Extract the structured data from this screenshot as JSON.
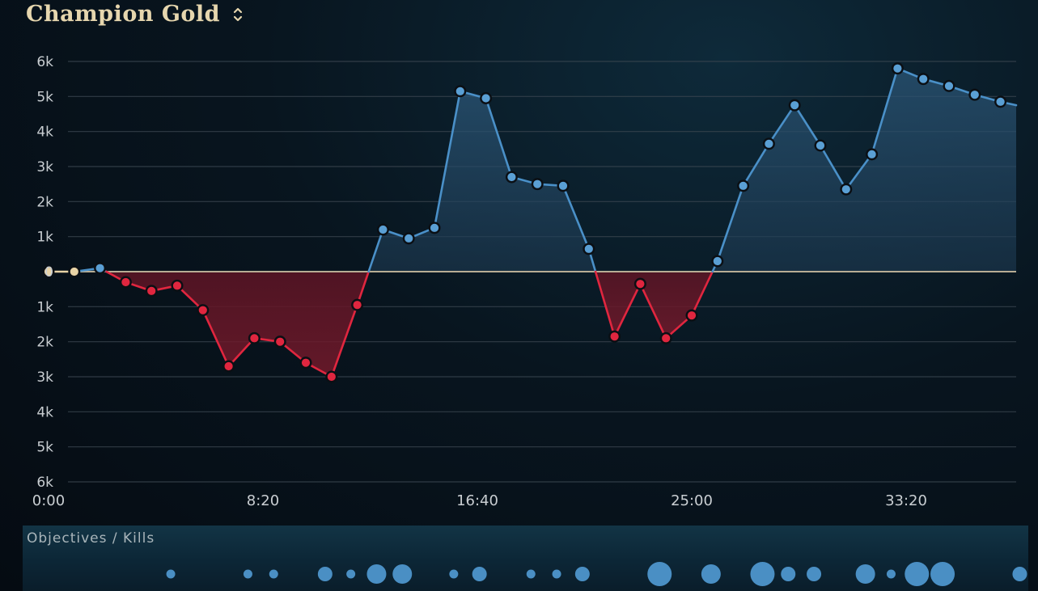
{
  "header": {
    "title": "Champion Gold",
    "sort_icon": "sort-chevrons-icon",
    "title_color": "#e6d6ae"
  },
  "chart_data": {
    "type": "line",
    "title": "Champion Gold",
    "y_ticks": [
      "6k",
      "5k",
      "4k",
      "3k",
      "2k",
      "1k",
      "0",
      "1k",
      "2k",
      "3k",
      "4k",
      "5k",
      "6k"
    ],
    "x_ticks": [
      "0:00",
      "8:20",
      "16:40",
      "25:00",
      "33:20"
    ],
    "xlim_minutes": [
      0,
      37.7
    ],
    "ylim": [
      -6000,
      6000
    ],
    "grid": true,
    "colors": {
      "positive": "#4a90c8",
      "negative": "#e0263f",
      "neutral": "#e8d3a6"
    },
    "series": [
      {
        "x_minutes": [
          0,
          1,
          2,
          3,
          4,
          5,
          6,
          7,
          8,
          9,
          10,
          11,
          12,
          13,
          14,
          15,
          16,
          17,
          18,
          19,
          20,
          21,
          22,
          23,
          24,
          25,
          26,
          27,
          28,
          29,
          30,
          31,
          32,
          33,
          34,
          35,
          36,
          37,
          37.7
        ],
        "values": [
          0,
          0,
          100,
          -300,
          -550,
          -400,
          -1100,
          -2700,
          -1900,
          -2000,
          -2600,
          -3000,
          -950,
          1200,
          950,
          1250,
          5150,
          4950,
          2700,
          2500,
          2450,
          650,
          -1850,
          -350,
          -1900,
          -1250,
          300,
          2450,
          3650,
          4750,
          3600,
          2350,
          3350,
          5800,
          5500,
          5300,
          5050,
          4850,
          4750
        ]
      }
    ]
  },
  "objectives": {
    "label": "Objectives / Kills",
    "dot_color": "#4a8fc4",
    "markers": [
      {
        "t": 4.75,
        "size": 1
      },
      {
        "t": 7.75,
        "size": 1
      },
      {
        "t": 8.75,
        "size": 1
      },
      {
        "t": 10.75,
        "size": 2
      },
      {
        "t": 11.75,
        "size": 1
      },
      {
        "t": 12.75,
        "size": 3
      },
      {
        "t": 13.75,
        "size": 3
      },
      {
        "t": 15.75,
        "size": 1
      },
      {
        "t": 16.75,
        "size": 2
      },
      {
        "t": 18.75,
        "size": 1
      },
      {
        "t": 19.75,
        "size": 1
      },
      {
        "t": 20.75,
        "size": 2
      },
      {
        "t": 23.75,
        "size": 4
      },
      {
        "t": 25.75,
        "size": 3
      },
      {
        "t": 27.75,
        "size": 4
      },
      {
        "t": 28.75,
        "size": 2
      },
      {
        "t": 29.75,
        "size": 2
      },
      {
        "t": 31.75,
        "size": 3
      },
      {
        "t": 32.75,
        "size": 1
      },
      {
        "t": 33.75,
        "size": 4
      },
      {
        "t": 34.75,
        "size": 4
      },
      {
        "t": 37.75,
        "size": 2
      }
    ]
  }
}
